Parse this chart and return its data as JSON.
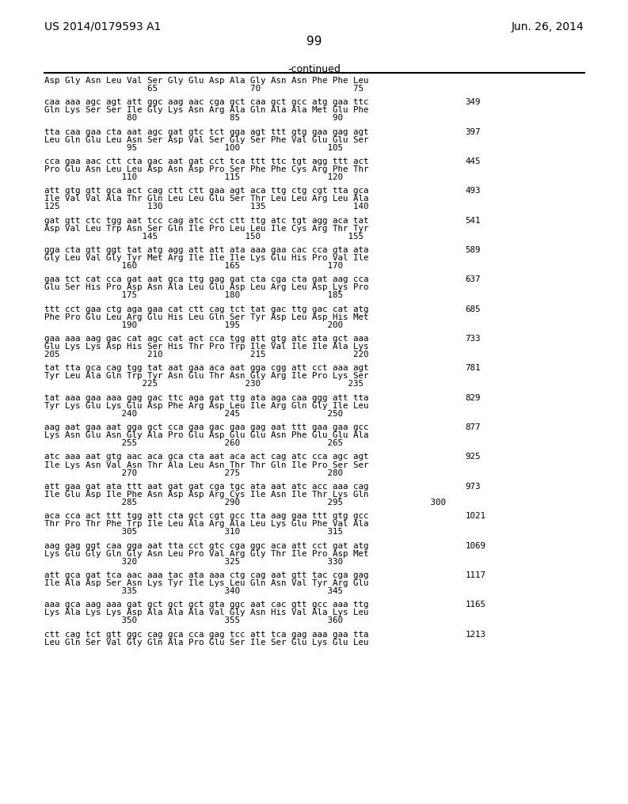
{
  "patent_number": "US 2014/0179593 A1",
  "date": "Jun. 26, 2014",
  "page_number": "99",
  "continued_label": "-continued",
  "background_color": "#ffffff",
  "text_color": "#000000",
  "blocks": [
    {
      "dna": "",
      "protein": "Asp Gly Asn Leu Val Ser Gly Glu Asp Ala Gly Asn Asn Phe Phe Leu",
      "nums": "                    65                  70                  75",
      "linenum": ""
    },
    {
      "dna": "caa aaa agc agt att ggc aag aac cga gct caa gct gcc atg gaa ttc",
      "protein": "Gln Lys Ser Ser Ile Gly Lys Asn Arg Ala Gln Ala Ala Met Glu Phe",
      "nums": "                80                  85                  90",
      "linenum": "349"
    },
    {
      "dna": "tta caa gaa cta aat agc gat gtc tct gga agt ttt gtg gaa gag agt",
      "protein": "Leu Gln Glu Leu Asn Ser Asp Val Ser Gly Ser Phe Val Glu Glu Ser",
      "nums": "                95                 100                 105",
      "linenum": "397"
    },
    {
      "dna": "cca gaa aac ctt cta gac aat gat cct tca ttt ttc tgt agg ttt act",
      "protein": "Pro Glu Asn Leu Leu Asp Asn Asp Pro Ser Phe Phe Cys Arg Phe Thr",
      "nums": "               110                 115                 120",
      "linenum": "445"
    },
    {
      "dna": "att gtg gtt gca act cag ctt ctt gaa agt aca ttg ctg cgt tta gca",
      "protein": "Ile Val Val Ala Thr Gln Leu Leu Glu Ser Thr Leu Leu Arg Leu Ala",
      "nums": "125                 130                 135                 140",
      "linenum": "493"
    },
    {
      "dna": "gat gtt ctc tgg aat tcc cag atc cct ctt ttg atc tgt agg aca tat",
      "protein": "Asp Val Leu Trp Asn Ser Gln Ile Pro Leu Leu Ile Cys Arg Thr Tyr",
      "nums": "                   145                 150                 155",
      "linenum": "541"
    },
    {
      "dna": "gga cta gtt ggt tat atg agg att att ata aaa gaa cac cca gta ata",
      "protein": "Gly Leu Val Gly Tyr Met Arg Ile Ile Ile Lys Glu His Pro Val Ile",
      "nums": "               160                 165                 170",
      "linenum": "589"
    },
    {
      "dna": "gaa tct cat cca gat aat gca ttg gag gat cta cga cta gat aag cca",
      "protein": "Glu Ser His Pro Asp Asn Ala Leu Glu Asp Leu Arg Leu Asp Lys Pro",
      "nums": "               175                 180                 185",
      "linenum": "637"
    },
    {
      "dna": "ttt cct gaa ctg aga gaa cat ctt cag tct tat gac ttg gac cat atg",
      "protein": "Phe Pro Glu Leu Arg Glu His Leu Gln Ser Tyr Asp Leu Asp His Met",
      "nums": "               190                 195                 200",
      "linenum": "685"
    },
    {
      "dna": "gaa aaa aag gac cat agc cat act cca tgg att gtg atc ata gct aaa",
      "protein": "Glu Lys Lys Asp His Ser His Thr Pro Trp Ile Val Ile Ile Ala Lys",
      "nums": "205                 210                 215                 220",
      "linenum": "733"
    },
    {
      "dna": "tat tta gca cag tgg tat aat gaa aca aat gga cgg att cct aaa agt",
      "protein": "Tyr Leu Ala Gln Trp Tyr Asn Glu Thr Asn Gly Arg Ile Pro Lys Ser",
      "nums": "                   225                 230                 235",
      "linenum": "781"
    },
    {
      "dna": "tat aaa gaa aaa gag gac ttc aga gat ttg ata aga caa ggg att tta",
      "protein": "Tyr Lys Glu Lys Glu Asp Phe Arg Asp Leu Ile Arg Gln Gly Ile Leu",
      "nums": "               240                 245                 250",
      "linenum": "829"
    },
    {
      "dna": "aag aat gaa aat gga gct cca gaa gac gaa gag aat ttt gaa gaa gcc",
      "protein": "Lys Asn Glu Asn Gly Ala Pro Glu Asp Glu Glu Asn Phe Glu Glu Ala",
      "nums": "               255                 260                 265",
      "linenum": "877"
    },
    {
      "dna": "atc aaa aat gtg aac aca gca cta aat aca act cag atc cca agc agt",
      "protein": "Ile Lys Asn Val Asn Thr Ala Leu Asn Thr Thr Gln Ile Pro Ser Ser",
      "nums": "               270                 275                 280",
      "linenum": "925"
    },
    {
      "dna": "att gaa gat ata ttt aat gat gat cga tgc ata aat atc acc aaa cag",
      "protein": "Ile Glu Asp Ile Phe Asn Asp Asp Arg Cys Ile Asn Ile Thr Lys Gln",
      "nums": "               285                 290                 295                 300",
      "linenum": "973"
    },
    {
      "dna": "aca cca act ttt tgg att cta gct cgt gcc tta aag gaa ttt gtg gcc",
      "protein": "Thr Pro Thr Phe Trp Ile Leu Ala Arg Ala Leu Lys Glu Phe Val Ala",
      "nums": "               305                 310                 315",
      "linenum": "1021"
    },
    {
      "dna": "aag gag ggt caa gga aat tta cct gtc cga ggc aca att cct gat atg",
      "protein": "Lys Glu Gly Gln Gly Asn Leu Pro Val Arg Gly Thr Ile Pro Asp Met",
      "nums": "               320                 325                 330",
      "linenum": "1069"
    },
    {
      "dna": "att gca gat tca aac aaa tac ata aaa ctg cag aat gtt tac cga gag",
      "protein": "Ile Ala Asp Ser Asn Lys Tyr Ile Lys Leu Gln Asn Val Tyr Arg Glu",
      "nums": "               335                 340                 345",
      "linenum": "1117"
    },
    {
      "dna": "aaa gca aag aaa gat gct gct gct gta ggc aat cac gtt gcc aaa ttg",
      "protein": "Lys Ala Lys Lys Asp Ala Ala Ala Val Gly Asn His Val Ala Lys Leu",
      "nums": "               350                 355                 360",
      "linenum": "1165"
    },
    {
      "dna": "ctt cag tct gtt ggc cag gca cca gag tcc att tca gag aaa gaa tta",
      "protein": "Leu Gln Ser Val Gly Gln Ala Pro Glu Ser Ile Ser Glu Lys Glu Leu",
      "nums": "",
      "linenum": "1213"
    }
  ]
}
